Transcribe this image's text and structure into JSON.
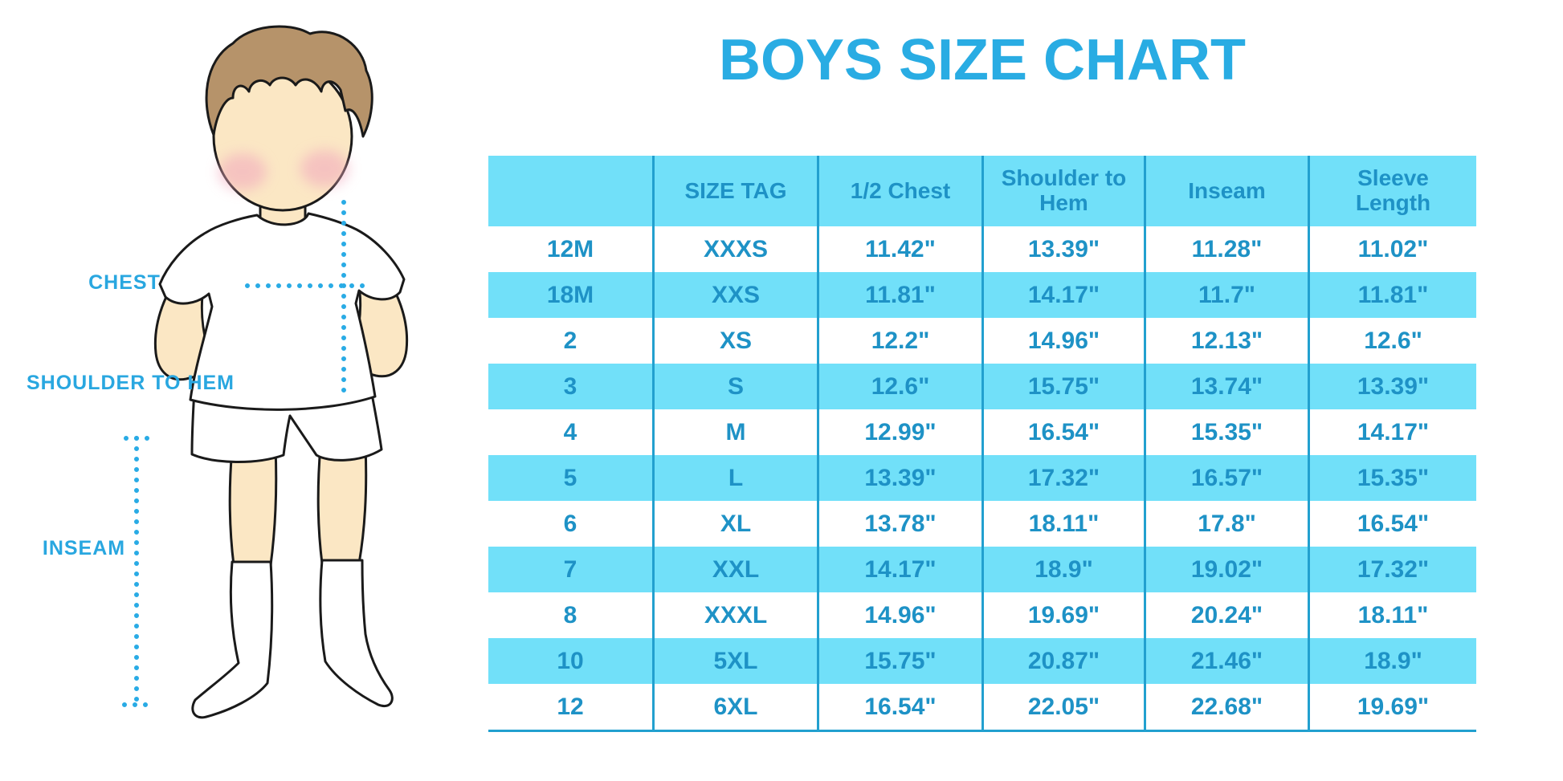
{
  "title": "BOYS SIZE CHART",
  "colors": {
    "title_text": "#29ACE3",
    "table_text": "#1E92C6",
    "row_highlight": "#71E0F9",
    "table_border": "#22A0CF",
    "label_text": "#29A7E0",
    "measure_dots": "#29ABE5",
    "skin": "#FBE7C4",
    "hair": "#B6936A",
    "cheeks": "#F2ABBE",
    "outline": "#1A1A1A",
    "clothing": "#FFFFFF"
  },
  "figure": {
    "labels": [
      {
        "id": "chest",
        "text": "CHEST"
      },
      {
        "id": "shoulder-to-hem",
        "text": "SHOULDER TO HEM"
      },
      {
        "id": "inseam",
        "text": "INSEAM"
      }
    ]
  },
  "table": {
    "columns": [
      "",
      "SIZE TAG",
      "1/2 Chest",
      "Shoulder to Hem",
      "Inseam",
      "Sleeve Length"
    ],
    "rows": [
      [
        "12M",
        "XXXS",
        "11.42\"",
        "13.39\"",
        "11.28\"",
        "11.02\""
      ],
      [
        "18M",
        "XXS",
        "11.81\"",
        "14.17\"",
        "11.7\"",
        "11.81\""
      ],
      [
        "2",
        "XS",
        "12.2\"",
        "14.96\"",
        "12.13\"",
        "12.6\""
      ],
      [
        "3",
        "S",
        "12.6\"",
        "15.75\"",
        "13.74\"",
        "13.39\""
      ],
      [
        "4",
        "M",
        "12.99\"",
        "16.54\"",
        "15.35\"",
        "14.17\""
      ],
      [
        "5",
        "L",
        "13.39\"",
        "17.32\"",
        "16.57\"",
        "15.35\""
      ],
      [
        "6",
        "XL",
        "13.78\"",
        "18.11\"",
        "17.8\"",
        "16.54\""
      ],
      [
        "7",
        "XXL",
        "14.17\"",
        "18.9\"",
        "19.02\"",
        "17.32\""
      ],
      [
        "8",
        "XXXL",
        "14.96\"",
        "19.69\"",
        "20.24\"",
        "18.11\""
      ],
      [
        "10",
        "5XL",
        "15.75\"",
        "20.87\"",
        "21.46\"",
        "18.9\""
      ],
      [
        "12",
        "6XL",
        "16.54\"",
        "22.05\"",
        "22.68\"",
        "19.69\""
      ]
    ]
  }
}
